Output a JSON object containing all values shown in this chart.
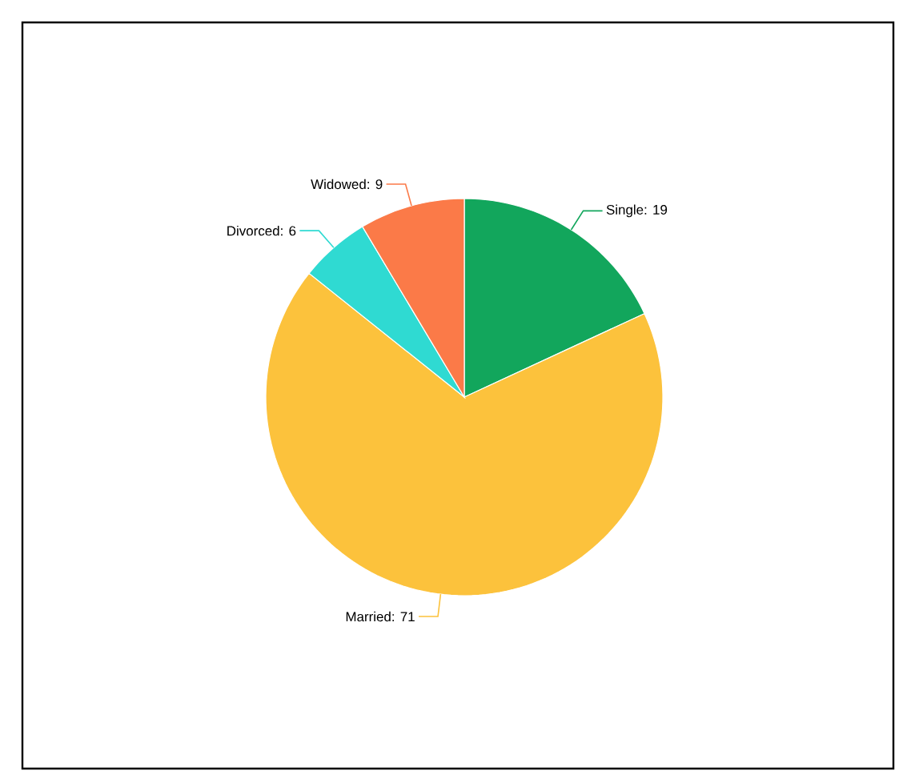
{
  "chart_data": {
    "type": "pie",
    "categories": [
      "Single",
      "Married",
      "Divorced",
      "Widowed"
    ],
    "values": [
      19,
      71,
      6,
      9
    ],
    "colors": [
      "#12a65c",
      "#fcc23c",
      "#2fdad2",
      "#fb7a48"
    ],
    "value_labels": [
      ": 19",
      ": 71",
      ": 6",
      ": 9"
    ]
  }
}
